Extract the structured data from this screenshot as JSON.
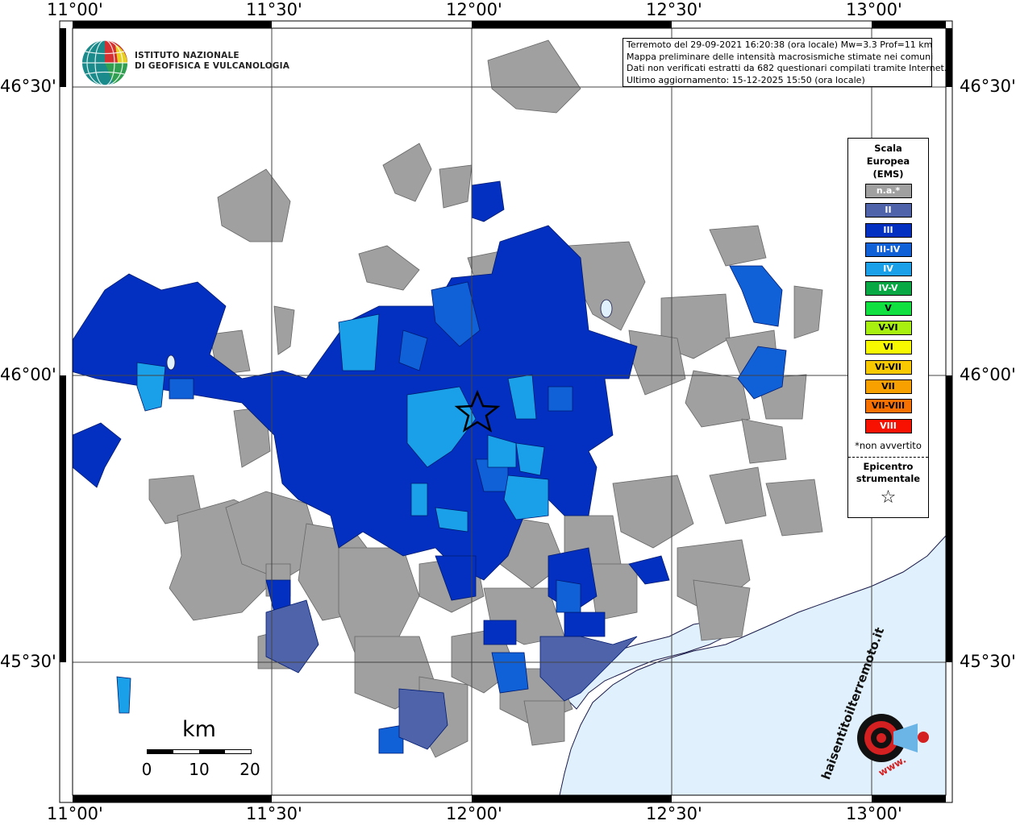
{
  "map": {
    "top_lon_labels": [
      "11°00'",
      "11°30'",
      "12°00'",
      "12°30'",
      "13°00'"
    ],
    "bottom_lon_labels": [
      "11°00'",
      "11°30'",
      "12°00'",
      "12°30'",
      "13°00'"
    ],
    "left_lat_labels": [
      "46°30'",
      "46°00'",
      "45°30'"
    ],
    "right_lat_labels": [
      "46°30'",
      "46°00'",
      "45°30'"
    ],
    "colors": {
      "land_na": "#a0a0a0",
      "sea": "#e0f0fc",
      "coast": "#1a1a4a",
      "II": "#4f63aa",
      "III": "#0330c0",
      "III-IV": "#1060d8",
      "IV": "#1aa0e8",
      "grid": "#444444"
    }
  },
  "logo": {
    "line1": "ISTITUTO NAZIONALE",
    "line2": "DI GEOFISICA E VULCANOLOGIA",
    "icon": "ingv-globe-icon"
  },
  "info": {
    "line1": "Terremoto del 29-09-2021 16:20:38 (ora locale) Mw=3.3 Prof=11 km",
    "line2": "Mappa preliminare delle intensità macrosismiche stimate nei comuni",
    "line3": "Dati non verificati estratti da 682 questionari compilati tramite Internet.",
    "line4": "Ultimo aggiornamento: 15-12-2025 15:50 (ora locale)"
  },
  "legend": {
    "title_line1": "Scala",
    "title_line2": "Europea",
    "title_line3": "(EMS)",
    "items": [
      {
        "label": "n.a.*",
        "color": "#a0a0a0"
      },
      {
        "label": "II",
        "color": "#4f63aa"
      },
      {
        "label": "III",
        "color": "#0330c0"
      },
      {
        "label": "III-IV",
        "color": "#1060d8"
      },
      {
        "label": "IV",
        "color": "#1aa0e8"
      },
      {
        "label": "IV-V",
        "color": "#08a844"
      },
      {
        "label": "V",
        "color": "#10e040"
      },
      {
        "label": "V-VI",
        "color": "#a8f010"
      },
      {
        "label": "VI",
        "color": "#f8f800"
      },
      {
        "label": "VI-VII",
        "color": "#f8c800"
      },
      {
        "label": "VII",
        "color": "#f8a000"
      },
      {
        "label": "VII-VIII",
        "color": "#f87000"
      },
      {
        "label": "VIII",
        "color": "#f81000"
      }
    ],
    "note": "*non avvertito",
    "epicenter_line1": "Epicentro",
    "epicenter_line2": "strumentale",
    "epicenter_icon": "star-outline-icon"
  },
  "scale_bar": {
    "unit": "km",
    "ticks": [
      "0",
      "10",
      "20"
    ]
  },
  "badge": {
    "text": "haisentitoilterremoto.it",
    "prefix": "www.",
    "icon": "hst-target-icon"
  }
}
